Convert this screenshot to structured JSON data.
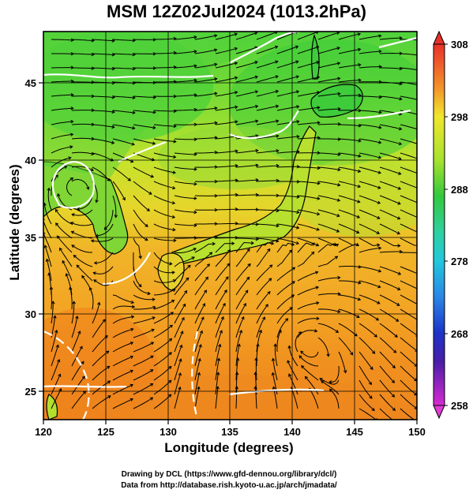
{
  "title": "MSM 12Z02Jul2024 (1013.2hPa)",
  "axes": {
    "xlabel": "Longitude (degrees)",
    "ylabel": "Latitude  (degrees)",
    "x_ticks": [
      "120",
      "125",
      "130",
      "135",
      "140",
      "145",
      "150"
    ],
    "y_ticks": [
      "25",
      "30",
      "35",
      "40",
      "45"
    ],
    "xlim": [
      120,
      150
    ],
    "ylim": [
      22.4,
      47.6
    ]
  },
  "colorbar": {
    "ticks": [
      "308",
      "298",
      "288",
      "278",
      "268",
      "258"
    ],
    "range": [
      258,
      308
    ]
  },
  "credits": {
    "line1": "Drawing by DCL (https://www.gfd-dennou.org/library/dcl/)",
    "line2": "Data from http://database.rish.kyoto-u.ac.jp/arch/jmadata/"
  },
  "colors": {
    "warm_orange": "#f08a1e",
    "orange": "#f5b02a",
    "yellow": "#e8df2a",
    "yellow_green": "#b6e22d",
    "green": "#4ed13a",
    "contour": "#ffffff",
    "streamline": "#000000"
  }
}
